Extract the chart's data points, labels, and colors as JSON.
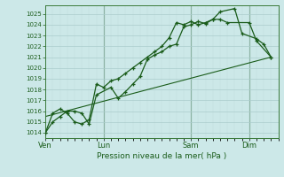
{
  "background_color": "#cce8e8",
  "grid_color_major": "#aacccc",
  "grid_color_minor": "#c0dcdc",
  "line_color": "#1a5c1a",
  "vline_color": "#4a7a4a",
  "xlabel": "Pression niveau de la mer( hPa )",
  "ylim": [
    1013.5,
    1025.8
  ],
  "yticks": [
    1014,
    1015,
    1016,
    1017,
    1018,
    1019,
    1020,
    1021,
    1022,
    1023,
    1024,
    1025
  ],
  "xtick_labels": [
    "Ven",
    "Lun",
    "Sam",
    "Dim"
  ],
  "xtick_positions": [
    0,
    4,
    10,
    14
  ],
  "xlim": [
    0,
    16
  ],
  "vlines": [
    4,
    10,
    14
  ],
  "series1_x": [
    0,
    0.5,
    1.0,
    1.5,
    2.0,
    2.5,
    3.0,
    3.5,
    4.5,
    5.0,
    5.5,
    6.0,
    6.5,
    7.0,
    7.5,
    8.0,
    8.5,
    9.0,
    9.5,
    10.0,
    10.5,
    11.0,
    11.5,
    12.0,
    13.0,
    13.5,
    14.5,
    15.0,
    15.5
  ],
  "series1_y": [
    1014,
    1015,
    1015.5,
    1016.0,
    1016.0,
    1015.8,
    1014.8,
    1017.5,
    1018.2,
    1017.2,
    1017.8,
    1018.5,
    1019.2,
    1020.8,
    1021.2,
    1021.5,
    1022.0,
    1022.2,
    1023.8,
    1024.0,
    1024.3,
    1024.1,
    1024.5,
    1025.2,
    1025.5,
    1023.2,
    1022.7,
    1022.2,
    1021.0
  ],
  "series2_x": [
    0,
    0.5,
    1.0,
    1.5,
    2.0,
    2.5,
    3.0,
    3.5,
    4.0,
    4.5,
    5.0,
    5.5,
    6.0,
    6.5,
    7.0,
    7.5,
    8.0,
    8.5,
    9.0,
    9.5,
    10.0,
    10.5,
    11.0,
    11.5,
    12.0,
    12.5,
    14.0,
    14.5,
    15.5
  ],
  "series2_y": [
    1014,
    1015.8,
    1016.2,
    1015.8,
    1015.0,
    1014.8,
    1015.2,
    1018.5,
    1018.2,
    1018.8,
    1019.0,
    1019.5,
    1020.0,
    1020.5,
    1021.0,
    1021.5,
    1022.0,
    1022.8,
    1024.2,
    1024.0,
    1024.3,
    1024.0,
    1024.2,
    1024.5,
    1024.5,
    1024.2,
    1024.2,
    1022.5,
    1021.0
  ],
  "series3_x": [
    0,
    15.5
  ],
  "series3_y": [
    1015.5,
    1021.0
  ]
}
